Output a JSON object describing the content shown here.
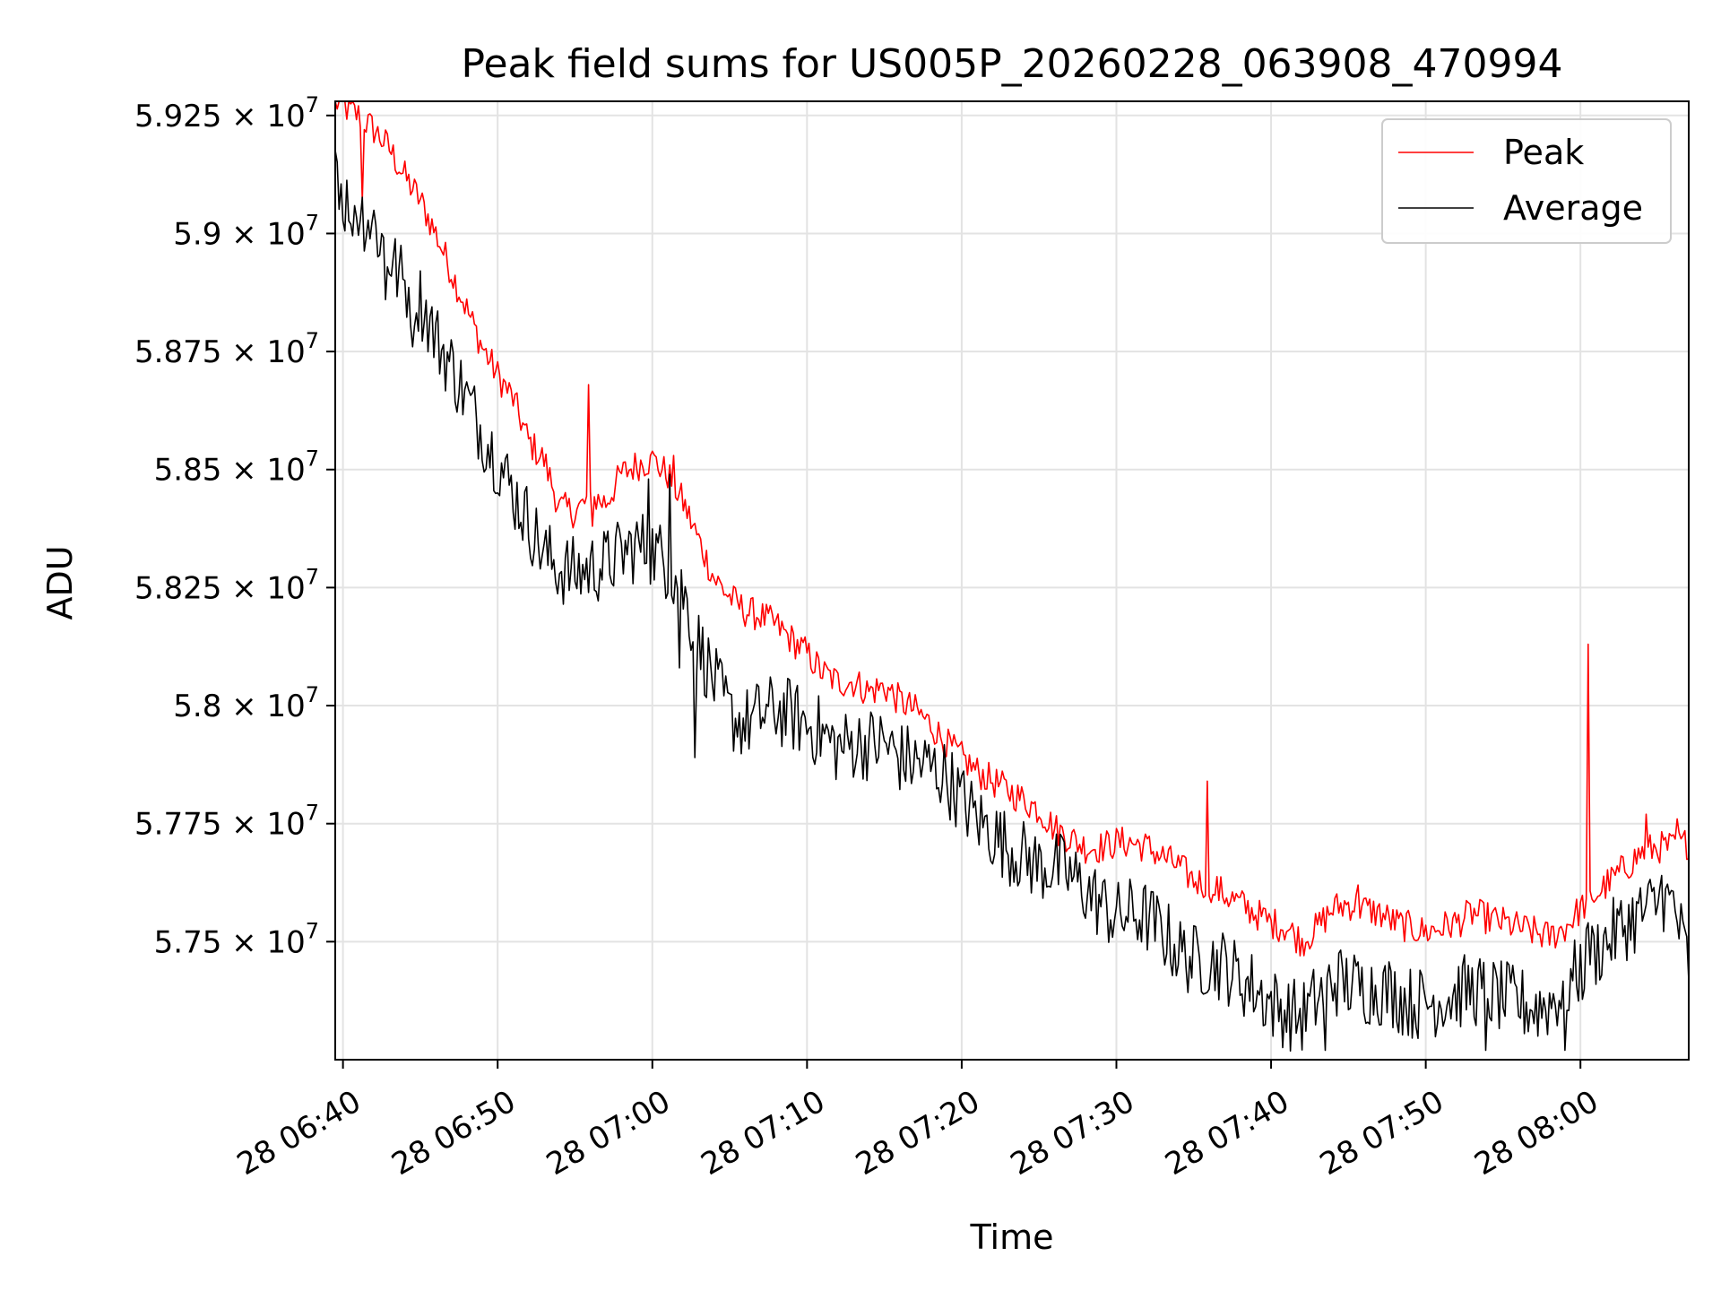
{
  "chart_data": {
    "type": "line",
    "title": "Peak field sums for US005P_20260228_063908_470994",
    "xlabel": "Time",
    "ylabel": "ADU",
    "x_tick_labels": [
      "28 06:40",
      "28 06:50",
      "28 07:00",
      "28 07:10",
      "28 07:20",
      "28 07:30",
      "28 07:40",
      "28 07:50",
      "28 08:00"
    ],
    "x_tick_minutes": [
      40,
      50,
      60,
      70,
      80,
      90,
      100,
      110,
      120
    ],
    "xlim_minutes": [
      39.5,
      127.0
    ],
    "y_ticks": [
      57500000,
      57750000,
      58000000,
      58250000,
      58500000,
      58750000,
      59000000,
      59250000
    ],
    "y_tick_labels": [
      {
        "mantissa": "5.75",
        "exp": "7"
      },
      {
        "mantissa": "5.775",
        "exp": "7"
      },
      {
        "mantissa": "5.8",
        "exp": "7"
      },
      {
        "mantissa": "5.825",
        "exp": "7"
      },
      {
        "mantissa": "5.85",
        "exp": "7"
      },
      {
        "mantissa": "5.875",
        "exp": "7"
      },
      {
        "mantissa": "5.9",
        "exp": "7"
      },
      {
        "mantissa": "5.925",
        "exp": "7"
      }
    ],
    "ylim": [
      57250000,
      59280000
    ],
    "grid": true,
    "legend_position": "top-right",
    "x_unit_note": "minutes past 06:00 on day 28",
    "series": [
      {
        "name": "Peak",
        "color": "#ff0000",
        "trend": [
          [
            39.5,
            59280000
          ],
          [
            41,
            59250000
          ],
          [
            42,
            59220000
          ],
          [
            43,
            59180000
          ],
          [
            44,
            59120000
          ],
          [
            45,
            59070000
          ],
          [
            46,
            59000000
          ],
          [
            47,
            58920000
          ],
          [
            48,
            58840000
          ],
          [
            49,
            58760000
          ],
          [
            50,
            58700000
          ],
          [
            51,
            58650000
          ],
          [
            52,
            58560000
          ],
          [
            53,
            58520000
          ],
          [
            54,
            58420000
          ],
          [
            55,
            58410000
          ],
          [
            56,
            58440000
          ],
          [
            57,
            58430000
          ],
          [
            58,
            58490000
          ],
          [
            59,
            58510000
          ],
          [
            60,
            58520000
          ],
          [
            61,
            58490000
          ],
          [
            62,
            58430000
          ],
          [
            63,
            58350000
          ],
          [
            64,
            58270000
          ],
          [
            65,
            58230000
          ],
          [
            66,
            58200000
          ],
          [
            67,
            58190000
          ],
          [
            68,
            58170000
          ],
          [
            69,
            58140000
          ],
          [
            70,
            58110000
          ],
          [
            71,
            58070000
          ],
          [
            72,
            58050000
          ],
          [
            73,
            58050000
          ],
          [
            74,
            58030000
          ],
          [
            75,
            58040000
          ],
          [
            76,
            58010000
          ],
          [
            77,
            57990000
          ],
          [
            78,
            57960000
          ],
          [
            79,
            57920000
          ],
          [
            80,
            57890000
          ],
          [
            81,
            57860000
          ],
          [
            82,
            57840000
          ],
          [
            83,
            57820000
          ],
          [
            84,
            57800000
          ],
          [
            85,
            57780000
          ],
          [
            86,
            57740000
          ],
          [
            87,
            57720000
          ],
          [
            88,
            57700000
          ],
          [
            89,
            57700000
          ],
          [
            90,
            57710000
          ],
          [
            91,
            57710000
          ],
          [
            92,
            57700000
          ],
          [
            93,
            57680000
          ],
          [
            94,
            57660000
          ],
          [
            95,
            57630000
          ],
          [
            96,
            57620000
          ],
          [
            97,
            57600000
          ],
          [
            98,
            57580000
          ],
          [
            99,
            57560000
          ],
          [
            100,
            57540000
          ],
          [
            101,
            57530000
          ],
          [
            102,
            57500000
          ],
          [
            103,
            57530000
          ],
          [
            104,
            57570000
          ],
          [
            105,
            57580000
          ],
          [
            106,
            57570000
          ],
          [
            107,
            57560000
          ],
          [
            108,
            57540000
          ],
          [
            109,
            57530000
          ],
          [
            110,
            57520000
          ],
          [
            111,
            57530000
          ],
          [
            112,
            57540000
          ],
          [
            113,
            57560000
          ],
          [
            114,
            57550000
          ],
          [
            115,
            57540000
          ],
          [
            116,
            57530000
          ],
          [
            117,
            57520000
          ],
          [
            118,
            57510000
          ],
          [
            119,
            57530000
          ],
          [
            120,
            57570000
          ],
          [
            121,
            57600000
          ],
          [
            122,
            57630000
          ],
          [
            123,
            57660000
          ],
          [
            124,
            57690000
          ],
          [
            125,
            57700000
          ],
          [
            126,
            57700000
          ],
          [
            127,
            57710000
          ]
        ],
        "spikes": [
          [
            41.2,
            59070000
          ],
          [
            55.9,
            58680000
          ],
          [
            56.1,
            58380000
          ],
          [
            59.9,
            58530000
          ],
          [
            61.4,
            58530000
          ],
          [
            95.9,
            57840000
          ],
          [
            96.2,
            57600000
          ],
          [
            98.2,
            57600000
          ],
          [
            102.4,
            57500000
          ],
          [
            105.6,
            57620000
          ],
          [
            120.5,
            58130000
          ],
          [
            120.7,
            57590000
          ],
          [
            124.3,
            57770000
          ],
          [
            126.2,
            57760000
          ]
        ]
      },
      {
        "name": "Average",
        "color": "#000000",
        "trend": [
          [
            39.5,
            59180000
          ],
          [
            40,
            59070000
          ],
          [
            41,
            59050000
          ],
          [
            42,
            59020000
          ],
          [
            43,
            58950000
          ],
          [
            44,
            58890000
          ],
          [
            45,
            58860000
          ],
          [
            46,
            58780000
          ],
          [
            47,
            58720000
          ],
          [
            48,
            58650000
          ],
          [
            49,
            58580000
          ],
          [
            50,
            58520000
          ],
          [
            51,
            58450000
          ],
          [
            52,
            58390000
          ],
          [
            53,
            58320000
          ],
          [
            54,
            58290000
          ],
          [
            55,
            58280000
          ],
          [
            56,
            58290000
          ],
          [
            57,
            58300000
          ],
          [
            58,
            58320000
          ],
          [
            59,
            58340000
          ],
          [
            60,
            58330000
          ],
          [
            61,
            58300000
          ],
          [
            62,
            58240000
          ],
          [
            63,
            58130000
          ],
          [
            64,
            58050000
          ],
          [
            65,
            57980000
          ],
          [
            66,
            57960000
          ],
          [
            67,
            57980000
          ],
          [
            68,
            57990000
          ],
          [
            69,
            57980000
          ],
          [
            70,
            57960000
          ],
          [
            71,
            57940000
          ],
          [
            72,
            57910000
          ],
          [
            73,
            57920000
          ],
          [
            74,
            57920000
          ],
          [
            75,
            57920000
          ],
          [
            76,
            57890000
          ],
          [
            77,
            57880000
          ],
          [
            78,
            57870000
          ],
          [
            79,
            57850000
          ],
          [
            80,
            57800000
          ],
          [
            81,
            57760000
          ],
          [
            82,
            57730000
          ],
          [
            83,
            57700000
          ],
          [
            84,
            57680000
          ],
          [
            85,
            57660000
          ],
          [
            86,
            57660000
          ],
          [
            87,
            57640000
          ],
          [
            88,
            57610000
          ],
          [
            89,
            57580000
          ],
          [
            90,
            57550000
          ],
          [
            91,
            57560000
          ],
          [
            92,
            57550000
          ],
          [
            93,
            57520000
          ],
          [
            94,
            57480000
          ],
          [
            95,
            57460000
          ],
          [
            96,
            57460000
          ],
          [
            97,
            57450000
          ],
          [
            98,
            57420000
          ],
          [
            99,
            57400000
          ],
          [
            100,
            57370000
          ],
          [
            101,
            57350000
          ],
          [
            102,
            57340000
          ],
          [
            103,
            57380000
          ],
          [
            104,
            57420000
          ],
          [
            105,
            57410000
          ],
          [
            106,
            57400000
          ],
          [
            107,
            57400000
          ],
          [
            108,
            57390000
          ],
          [
            109,
            57370000
          ],
          [
            110,
            57370000
          ],
          [
            111,
            57380000
          ],
          [
            112,
            57390000
          ],
          [
            113,
            57400000
          ],
          [
            114,
            57390000
          ],
          [
            115,
            57380000
          ],
          [
            116,
            57370000
          ],
          [
            117,
            57360000
          ],
          [
            118,
            57370000
          ],
          [
            119,
            57400000
          ],
          [
            120,
            57440000
          ],
          [
            121,
            57480000
          ],
          [
            122,
            57510000
          ],
          [
            123,
            57540000
          ],
          [
            124,
            57560000
          ],
          [
            125,
            57580000
          ],
          [
            126,
            57580000
          ],
          [
            127,
            57450000
          ]
        ],
        "spikes": [
          [
            40.5,
            59020000
          ],
          [
            42.8,
            58860000
          ],
          [
            44.5,
            58760000
          ],
          [
            59.7,
            58480000
          ],
          [
            61.1,
            58490000
          ],
          [
            61.7,
            58080000
          ],
          [
            62.8,
            57890000
          ],
          [
            103.5,
            57270000
          ],
          [
            113.9,
            57270000
          ],
          [
            119.0,
            57270000
          ],
          [
            120.5,
            57540000
          ],
          [
            125.3,
            57640000
          ]
        ]
      }
    ]
  }
}
